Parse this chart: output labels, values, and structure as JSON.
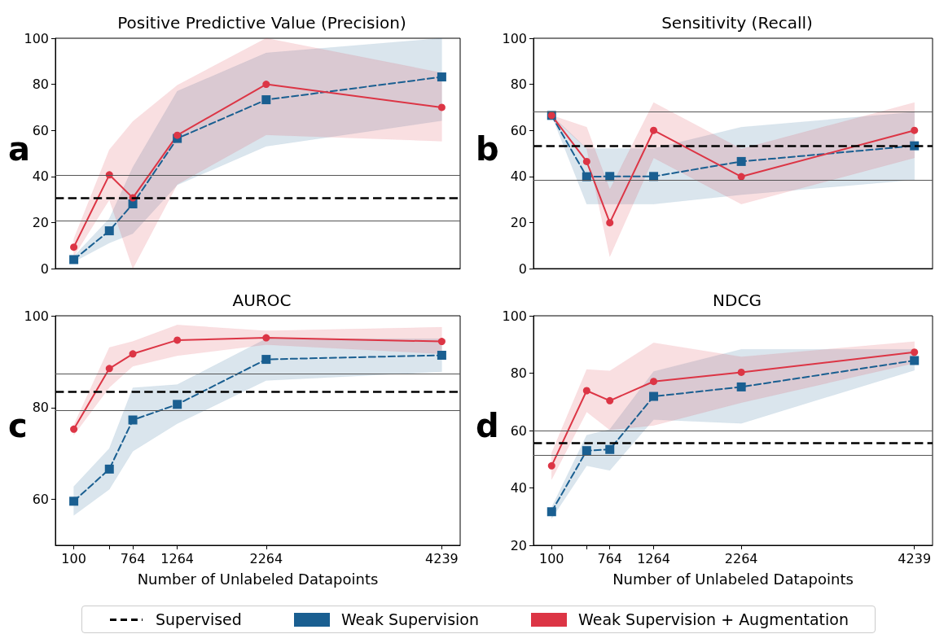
{
  "chart_data": [
    {
      "type": "line",
      "title": "Positive Predictive Value (Precision)",
      "annotations": [
        "a"
      ],
      "x": [
        100,
        500,
        764,
        1264,
        2264,
        4239
      ],
      "xlim": [
        -107,
        4446
      ],
      "ylim": [
        0,
        100
      ],
      "yticks": [
        0,
        20,
        40,
        60,
        80,
        100
      ],
      "tick_labels": "y",
      "legend": "bottom",
      "series": [
        {
          "name": "Weak Supervision",
          "color": "#1a5f91",
          "values": [
            3.9,
            16.4,
            28.1,
            56.5,
            73.3,
            83.2
          ],
          "lower": [
            2.9,
            11.1,
            15.2,
            36.3,
            53.1,
            64.2
          ],
          "upper": [
            5.3,
            21.7,
            44,
            77,
            93.6,
            100
          ],
          "line_style": "dashed",
          "marker": "square"
        },
        {
          "name": "Weak Supervision + Augmentation",
          "color": "#dc3545",
          "values": [
            9.3,
            40.7,
            30.7,
            57.9,
            80,
            70
          ],
          "lower": [
            5.3,
            29.9,
            0,
            36.6,
            58,
            55.3
          ],
          "upper": [
            12.9,
            51.6,
            63.9,
            79.6,
            100,
            85
          ],
          "line_style": "solid",
          "marker": "circle"
        }
      ],
      "ref_lines": [
        {
          "axis": "y",
          "value": 30.8,
          "label": "Supervised",
          "color": "#000000",
          "line_style": "dashed"
        },
        {
          "axis": "y",
          "value": 40.7,
          "color": "#555555"
        },
        {
          "axis": "y",
          "value": 20.9,
          "color": "#555555"
        }
      ]
    },
    {
      "type": "line",
      "title": "Sensitivity (Recall)",
      "annotations": [
        "b"
      ],
      "x": [
        100,
        500,
        764,
        1264,
        2264,
        4239
      ],
      "xlim": [
        -107,
        4446
      ],
      "ylim": [
        0,
        100
      ],
      "yticks": [
        0,
        20,
        40,
        60,
        80,
        100
      ],
      "tick_labels": "y",
      "series": [
        {
          "color": "#1a5f91",
          "values": [
            66.5,
            39.9,
            40,
            40,
            46.5,
            53.3
          ],
          "lower": [
            66.5,
            28,
            28,
            28,
            32.1,
            38.5
          ],
          "upper": [
            66.5,
            52.1,
            52.1,
            52.1,
            61.4,
            67.9
          ],
          "line_style": "dashed",
          "marker": "square"
        },
        {
          "color": "#dc3545",
          "values": [
            66.5,
            46.5,
            19.9,
            60,
            39.9,
            60
          ],
          "lower": [
            66,
            52.1,
            5.2,
            48.1,
            28,
            48.1
          ],
          "upper": [
            66.5,
            61.4,
            34.4,
            72.1,
            51.9,
            72.1
          ],
          "line_style": "solid",
          "marker": "circle"
        }
      ],
      "ref_lines": [
        {
          "axis": "y",
          "value": 53.3,
          "color": "#000000",
          "line_style": "dashed"
        },
        {
          "axis": "y",
          "value": 68,
          "color": "#555555"
        },
        {
          "axis": "y",
          "value": 38.6,
          "color": "#555555"
        }
      ]
    },
    {
      "type": "line",
      "title": "AUROC",
      "xlabel": "Number of Unlabeled Datapoints",
      "annotations": [
        "c"
      ],
      "x": [
        100,
        500,
        764,
        1264,
        2264,
        4239
      ],
      "xlim": [
        -107,
        4446
      ],
      "xticks": [
        100,
        {
          "value": 500,
          "label": null
        },
        764,
        1264,
        2264,
        4239
      ],
      "ylim": [
        50,
        100
      ],
      "yticks": [
        60,
        80,
        100
      ],
      "series": [
        {
          "color": "#1a5f91",
          "values": [
            59.6,
            66.6,
            77.3,
            80.7,
            90.5,
            91.4
          ],
          "lower": [
            56.5,
            62.2,
            70.5,
            76.5,
            85.9,
            87.8
          ],
          "upper": [
            62.8,
            71.1,
            84.3,
            85,
            95,
            95
          ],
          "line_style": "dashed",
          "marker": "square"
        },
        {
          "color": "#dc3545",
          "values": [
            75.3,
            88.5,
            91.7,
            94.7,
            95.2,
            94.4
          ],
          "lower": [
            74,
            84.4,
            89,
            91.3,
            93.7,
            91.7
          ],
          "upper": [
            76.2,
            93.1,
            94.4,
            98,
            96.7,
            97.5
          ],
          "line_style": "solid",
          "marker": "circle"
        }
      ],
      "ref_lines": [
        {
          "axis": "y",
          "value": 83.4,
          "color": "#000000",
          "line_style": "dashed"
        },
        {
          "axis": "y",
          "value": 87.3,
          "color": "#555555"
        },
        {
          "axis": "y",
          "value": 79.4,
          "color": "#555555"
        }
      ]
    },
    {
      "type": "line",
      "title": "NDCG",
      "xlabel": "Number of Unlabeled Datapoints",
      "annotations": [
        "d"
      ],
      "x": [
        100,
        500,
        764,
        1264,
        2264,
        4239
      ],
      "xlim": [
        -107,
        4446
      ],
      "xticks": [
        100,
        {
          "value": 500,
          "label": null
        },
        764,
        1264,
        2264,
        4239
      ],
      "ylim": [
        20,
        100
      ],
      "yticks": [
        20,
        40,
        60,
        80,
        100
      ],
      "series": [
        {
          "color": "#1a5f91",
          "values": [
            31.7,
            53,
            53.4,
            71.9,
            75.2,
            84.4
          ],
          "lower": [
            29.3,
            47.7,
            46.1,
            63.8,
            62.5,
            81
          ],
          "upper": [
            33.2,
            58.4,
            60.4,
            80.6,
            88.3,
            88.3
          ],
          "line_style": "dashed",
          "marker": "square"
        },
        {
          "color": "#dc3545",
          "values": [
            47.7,
            73.9,
            70.4,
            77.1,
            80.3,
            87.3
          ],
          "lower": [
            42.9,
            66.5,
            60.2,
            61.8,
            69.7,
            83.5
          ],
          "upper": [
            52.2,
            81.3,
            80.8,
            90.6,
            85.7,
            91
          ],
          "line_style": "solid",
          "marker": "circle"
        }
      ],
      "ref_lines": [
        {
          "axis": "y",
          "value": 55.7,
          "color": "#000000",
          "line_style": "dashed"
        },
        {
          "axis": "y",
          "value": 59.9,
          "color": "#555555"
        },
        {
          "axis": "y",
          "value": 51.4,
          "color": "#555555"
        }
      ]
    }
  ]
}
